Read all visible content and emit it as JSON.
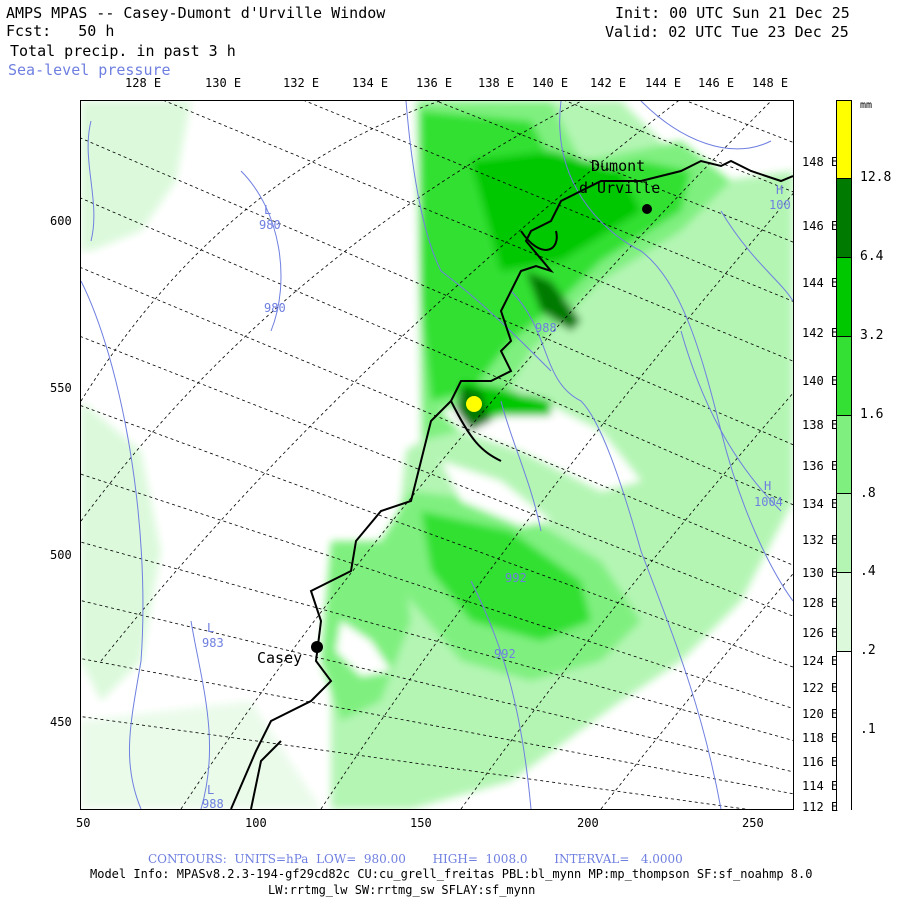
{
  "header": {
    "title": "AMPS MPAS -- Casey-Dumont d'Urville Window",
    "fcst": "Fcst:   50 h",
    "field": "Total precip. in past 3 h",
    "overlay": "Sea-level pressure",
    "init": "Init: 00 UTC Sun 21 Dec 25",
    "valid": "Valid: 02 UTC Tue 23 Dec 25"
  },
  "top_lon_labels": [
    "128 E",
    "130 E",
    "132 E",
    "134 E",
    "136 E",
    "138 E",
    "140 E",
    "142 E",
    "144 E",
    "146 E",
    "148 E"
  ],
  "right_lon_labels": [
    "148 E",
    "146 E",
    "144 E",
    "142 E",
    "140 E",
    "138 E",
    "136 E",
    "134 E",
    "132 E",
    "130 E",
    "128 E",
    "126 E",
    "124 E",
    "122 E",
    "120 E",
    "118 E",
    "116 E",
    "114 E",
    "112 E"
  ],
  "y_axis": [
    "600",
    "550",
    "500",
    "450"
  ],
  "x_axis": [
    "50",
    "100",
    "150",
    "200",
    "250"
  ],
  "map": {
    "stations": [
      {
        "name": "Dumont\nd'Urville",
        "label1": "Dumont",
        "label2": "d'Urville"
      },
      {
        "name": "Casey",
        "label1": "Casey"
      }
    ],
    "pressure_labels": [
      {
        "t": "L"
      },
      {
        "t": "980"
      },
      {
        "t": "980"
      },
      {
        "t": "988"
      },
      {
        "t": "992"
      },
      {
        "t": "992"
      },
      {
        "t": "L"
      },
      {
        "t": "983"
      },
      {
        "t": "L"
      },
      {
        "t": "988"
      },
      {
        "t": "H"
      },
      {
        "t": "1004"
      },
      {
        "t": "H"
      },
      {
        "t": "100"
      }
    ]
  },
  "colorbar": {
    "unit": "mm",
    "labels": [
      "12.8",
      "6.4",
      "3.2",
      "1.6",
      ".8",
      ".4",
      ".2",
      ".1"
    ],
    "colors": [
      "#ffff00",
      "#007a00",
      "#00c800",
      "#33e033",
      "#7ff07f",
      "#b4f5b4",
      "#dcf9dc",
      "#ffffff"
    ]
  },
  "footer": {
    "contours": "CONTOURS:  UNITS=hPa  LOW=  980.00       HIGH=  1008.0       INTERVAL=   4.0000",
    "model1": "Model Info: MPASv8.2.3-194-gf29cd82c CU:cu_grell_freitas PBL:bl_mynn MP:mp_thompson SF:sf_noahmp 8.0",
    "model2": "LW:rrtmg_lw SW:rrtmg_sw SFLAY:sf_mynn"
  }
}
